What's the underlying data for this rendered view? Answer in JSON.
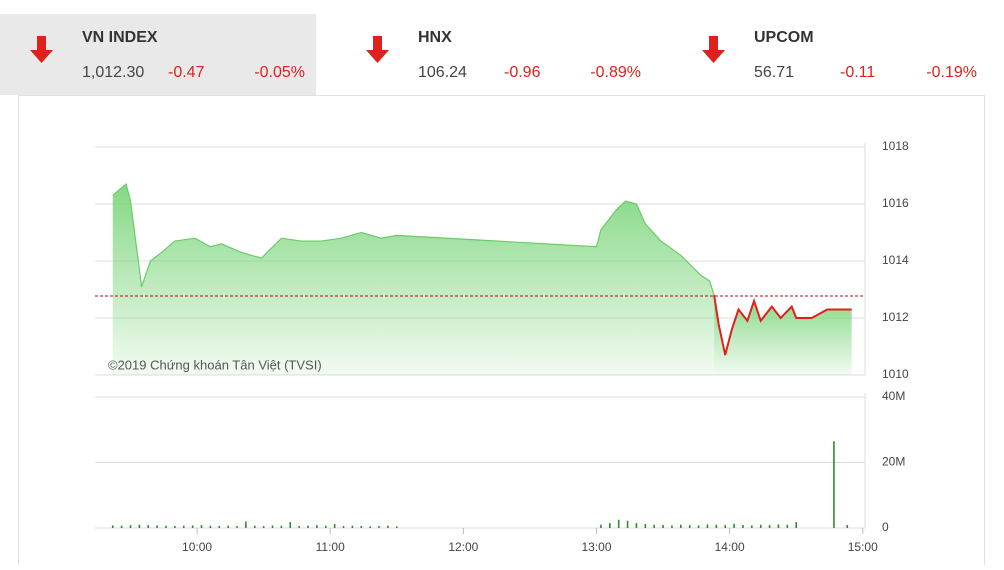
{
  "indices": [
    {
      "name": "VN INDEX",
      "value": "1,012.30",
      "change": "-0.47",
      "percent": "-0.05%"
    },
    {
      "name": "HNX",
      "value": "106.24",
      "change": "-0.96",
      "percent": "-0.89%"
    },
    {
      "name": "UPCOM",
      "value": "56.71",
      "change": "-0.11",
      "percent": "-0.19%"
    }
  ],
  "watermark": "©2019 Chứng khoán Tân Việt (TVSI)",
  "chart_data": [
    {
      "type": "area",
      "xlim": [
        554,
        901
      ],
      "ylim": [
        1010,
        1018
      ],
      "yticks": [
        1010,
        1012,
        1014,
        1016,
        1018
      ],
      "grid": true,
      "reference": 1012.77,
      "reference_color": "#b01010",
      "area_color": "#7ed67e",
      "x": [
        562,
        565,
        568,
        570,
        575,
        579,
        584,
        590,
        599,
        606,
        611,
        620,
        629,
        638,
        647,
        656,
        665,
        674,
        683,
        690,
        780,
        782,
        789,
        793,
        798,
        802,
        809,
        818,
        827,
        831,
        833,
        835,
        838,
        841,
        844,
        848,
        851,
        854,
        859,
        863,
        868,
        870,
        877,
        884,
        895
      ],
      "series": [
        {
          "color": "#6acb6a",
          "values": [
            1016.3,
            1016.5,
            1016.7,
            1016.1,
            1013.1,
            1014.0,
            1014.3,
            1014.7,
            1014.8,
            1014.5,
            1014.6,
            1014.3,
            1014.1,
            1014.8,
            1014.7,
            1014.7,
            1014.8,
            1015.0,
            1014.8,
            1014.9,
            1014.5,
            1015.1,
            1015.8,
            1016.1,
            1016.0,
            1015.3,
            1014.7,
            1014.2,
            1013.5,
            1013.3,
            1012.8,
            null,
            null,
            null,
            null,
            null,
            null,
            null,
            null,
            null,
            null,
            null,
            null,
            null,
            null
          ]
        },
        {
          "color": "#e0201b",
          "values": [
            null,
            null,
            null,
            null,
            null,
            null,
            null,
            null,
            null,
            null,
            null,
            null,
            null,
            null,
            null,
            null,
            null,
            null,
            null,
            null,
            null,
            null,
            null,
            null,
            null,
            null,
            null,
            null,
            null,
            null,
            1012.8,
            1011.8,
            1010.7,
            1011.6,
            1012.3,
            1011.9,
            1012.6,
            1011.9,
            1012.4,
            1012.0,
            1012.4,
            1012.0,
            1012.0,
            1012.3,
            1012.3
          ]
        }
      ]
    },
    {
      "type": "bar",
      "color": "#2e8b2e",
      "xlim": [
        554,
        901
      ],
      "ylim": [
        0,
        40000000
      ],
      "yticks": [
        0,
        {
          "value": 20000000,
          "label": "20M"
        },
        {
          "value": 40000000,
          "label": "40M"
        }
      ],
      "grid": true,
      "xticks": [
        {
          "value": 600,
          "label": "10:00"
        },
        {
          "value": 660,
          "label": "11:00"
        },
        {
          "value": 720,
          "label": "12:00"
        },
        {
          "value": 780,
          "label": "13:00"
        },
        {
          "value": 840,
          "label": "14:00"
        },
        {
          "value": 900,
          "label": "15:00"
        }
      ],
      "x": [
        562,
        566,
        570,
        574,
        578,
        582,
        586,
        590,
        594,
        598,
        602,
        606,
        610,
        614,
        618,
        622,
        626,
        630,
        634,
        638,
        642,
        646,
        650,
        654,
        658,
        662,
        666,
        670,
        674,
        678,
        682,
        686,
        690,
        782,
        786,
        790,
        794,
        798,
        802,
        806,
        810,
        814,
        818,
        822,
        826,
        830,
        834,
        838,
        842,
        846,
        850,
        854,
        858,
        862,
        866,
        870,
        887,
        893
      ],
      "values": [
        800000,
        700000,
        900000,
        1000000,
        900000,
        800000,
        700000,
        600000,
        700000,
        800000,
        900000,
        700000,
        600000,
        700000,
        600000,
        2000000,
        700000,
        600000,
        800000,
        700000,
        1800000,
        600000,
        700000,
        900000,
        700000,
        1200000,
        600000,
        700000,
        600000,
        500000,
        600000,
        700000,
        500000,
        1000000,
        1500000,
        2500000,
        2200000,
        1500000,
        1200000,
        1000000,
        900000,
        800000,
        1000000,
        900000,
        800000,
        1100000,
        1000000,
        900000,
        1300000,
        900000,
        800000,
        1000000,
        900000,
        1100000,
        1000000,
        1800000,
        26500000,
        900000
      ]
    }
  ]
}
